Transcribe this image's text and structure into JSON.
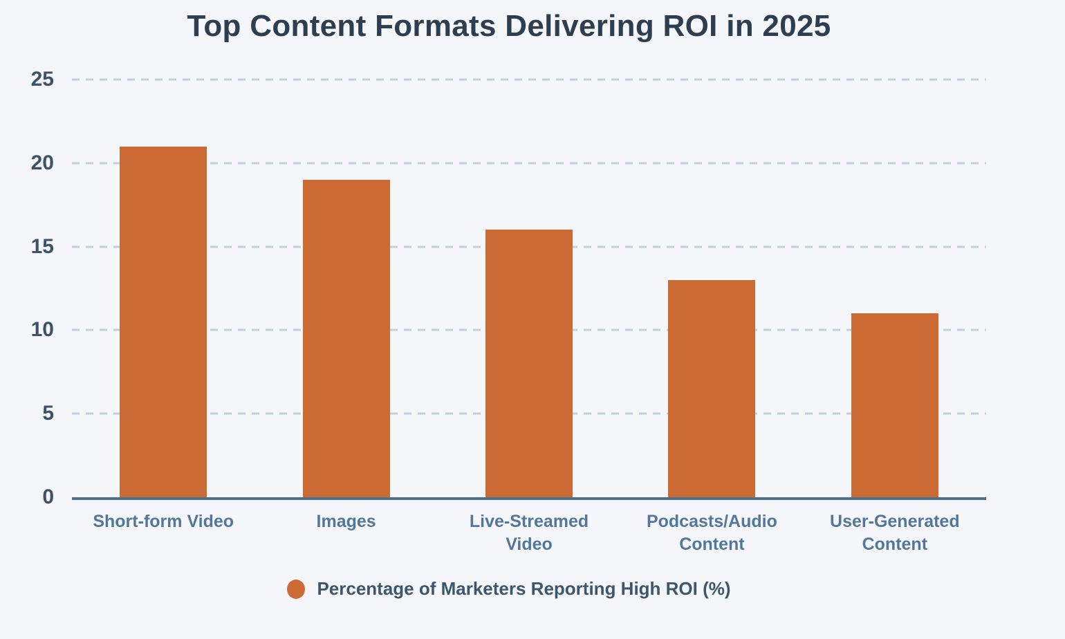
{
  "chart_data": {
    "type": "bar",
    "title": "Top Content Formats Delivering ROI in 2025",
    "categories": [
      "Short-form Video",
      "Images",
      "Live-Streamed Video",
      "Podcasts/Audio Content",
      "User-Generated Content"
    ],
    "series": [
      {
        "name": "Percentage of Marketers Reporting High ROI (%)",
        "values": [
          21,
          19,
          16,
          13,
          11
        ]
      }
    ],
    "xlabel": "",
    "ylabel": "",
    "ylim": [
      0,
      25
    ],
    "yticks": [
      0,
      5,
      10,
      15,
      20,
      25
    ],
    "grid": "horizontal-dashed",
    "legend_position": "bottom-center",
    "colors": {
      "bar": "#cb6a33",
      "background": "#f4f6fa",
      "title_text": "#2d3e50",
      "tick_text": "#3d5168",
      "category_text": "#53779b",
      "legend_text": "#3c566e",
      "gridline": "#c3cedd",
      "axis_line": "#4e6f8e"
    }
  }
}
